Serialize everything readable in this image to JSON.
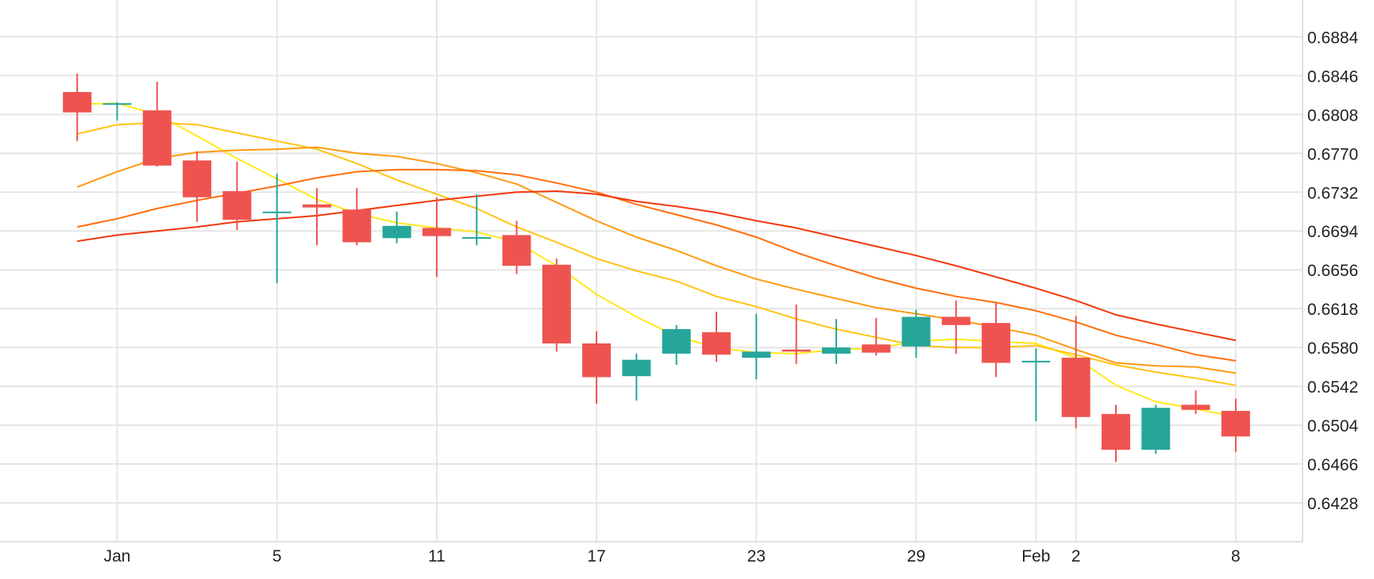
{
  "chart_data": {
    "type": "candlestick",
    "title": "",
    "xlabel": "",
    "ylabel": "",
    "ylim": [
      0.639,
      0.692
    ],
    "grid": true,
    "colors": {
      "up": "#26a69a",
      "down": "#ef5350",
      "grid": "#e6e6e6"
    },
    "y_ticks": [
      "0.6884",
      "0.6846",
      "0.6808",
      "0.6770",
      "0.6732",
      "0.6694",
      "0.6656",
      "0.6618",
      "0.6580",
      "0.6542",
      "0.6504",
      "0.6466",
      "0.6428"
    ],
    "x_ticks": [
      {
        "label": "Jan",
        "x": -2
      },
      {
        "label": "5",
        "x": 2
      },
      {
        "label": "11",
        "x": 6
      },
      {
        "label": "17",
        "x": 10
      },
      {
        "label": "23",
        "x": 14
      },
      {
        "label": "29",
        "x": 18
      },
      {
        "label": "Feb",
        "x": 21
      },
      {
        "label": "2",
        "x": 22
      },
      {
        "label": "8",
        "x": 26
      }
    ],
    "candles": [
      {
        "x": -3,
        "o": 0.683,
        "h": 0.6848,
        "l": 0.6782,
        "c": 0.681
      },
      {
        "x": -2,
        "o": 0.6818,
        "h": 0.682,
        "l": 0.6802,
        "c": 0.6819
      },
      {
        "x": -1,
        "o": 0.6812,
        "h": 0.684,
        "l": 0.6757,
        "c": 0.6758
      },
      {
        "x": 0,
        "o": 0.6763,
        "h": 0.6772,
        "l": 0.6703,
        "c": 0.6727
      },
      {
        "x": 1,
        "o": 0.6733,
        "h": 0.6762,
        "l": 0.6695,
        "c": 0.6705
      },
      {
        "x": 2,
        "o": 0.6712,
        "h": 0.675,
        "l": 0.6643,
        "c": 0.6713
      },
      {
        "x": 3,
        "o": 0.672,
        "h": 0.6736,
        "l": 0.668,
        "c": 0.6717
      },
      {
        "x": 4,
        "o": 0.6715,
        "h": 0.6736,
        "l": 0.668,
        "c": 0.6683
      },
      {
        "x": 5,
        "o": 0.6687,
        "h": 0.6713,
        "l": 0.6682,
        "c": 0.6699
      },
      {
        "x": 6,
        "o": 0.6697,
        "h": 0.6727,
        "l": 0.6649,
        "c": 0.6689
      },
      {
        "x": 7,
        "o": 0.6688,
        "h": 0.673,
        "l": 0.668,
        "c": 0.6688
      },
      {
        "x": 8,
        "o": 0.669,
        "h": 0.6704,
        "l": 0.6652,
        "c": 0.666
      },
      {
        "x": 9,
        "o": 0.6661,
        "h": 0.6667,
        "l": 0.6576,
        "c": 0.6584
      },
      {
        "x": 10,
        "o": 0.6584,
        "h": 0.6596,
        "l": 0.6525,
        "c": 0.6551
      },
      {
        "x": 11,
        "o": 0.6552,
        "h": 0.6574,
        "l": 0.6528,
        "c": 0.6568
      },
      {
        "x": 12,
        "o": 0.6574,
        "h": 0.6602,
        "l": 0.6563,
        "c": 0.6598
      },
      {
        "x": 13,
        "o": 0.6595,
        "h": 0.6615,
        "l": 0.6566,
        "c": 0.6573
      },
      {
        "x": 14,
        "o": 0.657,
        "h": 0.6613,
        "l": 0.6549,
        "c": 0.6576
      },
      {
        "x": 15,
        "o": 0.6578,
        "h": 0.6622,
        "l": 0.6564,
        "c": 0.6576
      },
      {
        "x": 16,
        "o": 0.6574,
        "h": 0.6608,
        "l": 0.6564,
        "c": 0.658
      },
      {
        "x": 17,
        "o": 0.6583,
        "h": 0.6609,
        "l": 0.6572,
        "c": 0.6575
      },
      {
        "x": 18,
        "o": 0.6581,
        "h": 0.6617,
        "l": 0.657,
        "c": 0.661
      },
      {
        "x": 19,
        "o": 0.661,
        "h": 0.6626,
        "l": 0.6574,
        "c": 0.6602
      },
      {
        "x": 20,
        "o": 0.6604,
        "h": 0.6624,
        "l": 0.6551,
        "c": 0.6565
      },
      {
        "x": 21,
        "o": 0.6566,
        "h": 0.6579,
        "l": 0.6508,
        "c": 0.6567
      },
      {
        "x": 22,
        "o": 0.657,
        "h": 0.6611,
        "l": 0.6501,
        "c": 0.6512
      },
      {
        "x": 23,
        "o": 0.6515,
        "h": 0.6524,
        "l": 0.6468,
        "c": 0.648
      },
      {
        "x": 24,
        "o": 0.648,
        "h": 0.6524,
        "l": 0.6476,
        "c": 0.6521
      },
      {
        "x": 25,
        "o": 0.6524,
        "h": 0.6538,
        "l": 0.6515,
        "c": 0.6519
      },
      {
        "x": 26,
        "o": 0.6518,
        "h": 0.653,
        "l": 0.6478,
        "c": 0.6493
      }
    ],
    "ma_lines": [
      {
        "color": "#ffe81a",
        "points": [
          [
            -3,
            0.6818
          ],
          [
            -2,
            0.6819
          ],
          [
            -1,
            0.6808
          ],
          [
            0,
            0.6787
          ],
          [
            1,
            0.6765
          ],
          [
            2,
            0.6745
          ],
          [
            3,
            0.6725
          ],
          [
            4,
            0.6711
          ],
          [
            5,
            0.6702
          ],
          [
            6,
            0.6697
          ],
          [
            7,
            0.6693
          ],
          [
            8,
            0.6683
          ],
          [
            9,
            0.666
          ],
          [
            10,
            0.6632
          ],
          [
            11,
            0.661
          ],
          [
            12,
            0.6591
          ],
          [
            13,
            0.658
          ],
          [
            14,
            0.6575
          ],
          [
            15,
            0.6574
          ],
          [
            16,
            0.6578
          ],
          [
            17,
            0.6579
          ],
          [
            18,
            0.6586
          ],
          [
            19,
            0.6588
          ],
          [
            20,
            0.6586
          ],
          [
            21,
            0.6584
          ],
          [
            22,
            0.657
          ],
          [
            23,
            0.6543
          ],
          [
            24,
            0.6527
          ],
          [
            25,
            0.652
          ],
          [
            26,
            0.6512
          ]
        ]
      },
      {
        "color": "#ffc413",
        "points": [
          [
            -3,
            0.6789
          ],
          [
            -2,
            0.6798
          ],
          [
            -1,
            0.68
          ],
          [
            0,
            0.6798
          ],
          [
            1,
            0.679
          ],
          [
            2,
            0.6782
          ],
          [
            3,
            0.6774
          ],
          [
            4,
            0.676
          ],
          [
            5,
            0.6744
          ],
          [
            6,
            0.673
          ],
          [
            7,
            0.6716
          ],
          [
            8,
            0.6698
          ],
          [
            9,
            0.6683
          ],
          [
            10,
            0.6667
          ],
          [
            11,
            0.6655
          ],
          [
            12,
            0.6645
          ],
          [
            13,
            0.663
          ],
          [
            14,
            0.662
          ],
          [
            15,
            0.6608
          ],
          [
            16,
            0.6598
          ],
          [
            17,
            0.659
          ],
          [
            18,
            0.6582
          ],
          [
            19,
            0.658
          ],
          [
            20,
            0.658
          ],
          [
            21,
            0.6582
          ],
          [
            22,
            0.6573
          ],
          [
            23,
            0.6563
          ],
          [
            24,
            0.6556
          ],
          [
            25,
            0.655
          ],
          [
            26,
            0.6543
          ]
        ]
      },
      {
        "color": "#ff9a0e",
        "points": [
          [
            -3,
            0.6737
          ],
          [
            -2,
            0.6752
          ],
          [
            -1,
            0.6765
          ],
          [
            0,
            0.6771
          ],
          [
            1,
            0.6773
          ],
          [
            2,
            0.6774
          ],
          [
            3,
            0.6776
          ],
          [
            4,
            0.677
          ],
          [
            5,
            0.6767
          ],
          [
            6,
            0.676
          ],
          [
            7,
            0.6751
          ],
          [
            8,
            0.674
          ],
          [
            9,
            0.6722
          ],
          [
            10,
            0.6704
          ],
          [
            11,
            0.6688
          ],
          [
            12,
            0.6675
          ],
          [
            13,
            0.666
          ],
          [
            14,
            0.6647
          ],
          [
            15,
            0.6637
          ],
          [
            16,
            0.6628
          ],
          [
            17,
            0.6619
          ],
          [
            18,
            0.6613
          ],
          [
            19,
            0.6607
          ],
          [
            20,
            0.66
          ],
          [
            21,
            0.6592
          ],
          [
            22,
            0.6578
          ],
          [
            23,
            0.6565
          ],
          [
            24,
            0.6562
          ],
          [
            25,
            0.6561
          ],
          [
            26,
            0.6555
          ]
        ]
      },
      {
        "color": "#ff6e0a",
        "points": [
          [
            -3,
            0.6698
          ],
          [
            -2,
            0.6706
          ],
          [
            -1,
            0.6716
          ],
          [
            0,
            0.6724
          ],
          [
            1,
            0.6731
          ],
          [
            2,
            0.6738
          ],
          [
            3,
            0.6746
          ],
          [
            4,
            0.6752
          ],
          [
            5,
            0.6754
          ],
          [
            6,
            0.6754
          ],
          [
            7,
            0.6753
          ],
          [
            8,
            0.6749
          ],
          [
            9,
            0.6741
          ],
          [
            10,
            0.6732
          ],
          [
            11,
            0.672
          ],
          [
            12,
            0.671
          ],
          [
            13,
            0.67
          ],
          [
            14,
            0.6688
          ],
          [
            15,
            0.6673
          ],
          [
            16,
            0.666
          ],
          [
            17,
            0.6648
          ],
          [
            18,
            0.6638
          ],
          [
            19,
            0.663
          ],
          [
            20,
            0.6624
          ],
          [
            21,
            0.6616
          ],
          [
            22,
            0.6605
          ],
          [
            23,
            0.6592
          ],
          [
            24,
            0.6583
          ],
          [
            25,
            0.6573
          ],
          [
            26,
            0.6567
          ]
        ]
      },
      {
        "color": "#f2380c",
        "points": [
          [
            -3,
            0.6684
          ],
          [
            -2,
            0.669
          ],
          [
            -1,
            0.6694
          ],
          [
            0,
            0.6698
          ],
          [
            1,
            0.6703
          ],
          [
            2,
            0.6706
          ],
          [
            3,
            0.6709
          ],
          [
            4,
            0.6714
          ],
          [
            5,
            0.6719
          ],
          [
            6,
            0.6724
          ],
          [
            7,
            0.6728
          ],
          [
            8,
            0.6732
          ],
          [
            9,
            0.6733
          ],
          [
            10,
            0.673
          ],
          [
            11,
            0.6723
          ],
          [
            12,
            0.6718
          ],
          [
            13,
            0.6712
          ],
          [
            14,
            0.6704
          ],
          [
            15,
            0.6697
          ],
          [
            16,
            0.6688
          ],
          [
            17,
            0.6679
          ],
          [
            18,
            0.667
          ],
          [
            19,
            0.666
          ],
          [
            20,
            0.6649
          ],
          [
            21,
            0.6638
          ],
          [
            22,
            0.6626
          ],
          [
            23,
            0.6612
          ],
          [
            24,
            0.6603
          ],
          [
            25,
            0.6595
          ],
          [
            26,
            0.6587
          ]
        ]
      }
    ]
  }
}
